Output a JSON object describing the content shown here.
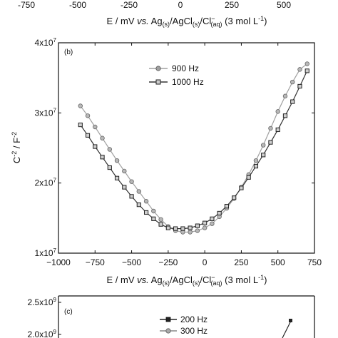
{
  "chart_data": [
    {
      "panel": "top",
      "type": "line",
      "x_tick_labels": [
        "-750",
        "-500",
        "-250",
        "0",
        "250",
        "500"
      ],
      "xlabel": {
        "prefix": "E / mV ",
        "italic": "vs.",
        "mid1": " Ag",
        "sub1": "(s)",
        "mid2": "/AgCl",
        "sub2": "(s)",
        "mid3": "/Cl",
        "sup3": "−",
        "sub3": "(aq)",
        "suffix": " (3 mol L",
        "sup_suffix": "-1",
        "end": ")"
      }
    },
    {
      "panel": "middle",
      "type": "line",
      "panel_label": "(b)",
      "xlim": [
        -1000,
        750
      ],
      "ylim": [
        10000000,
        40000000
      ],
      "x_ticks": [
        -1000,
        -750,
        -500,
        -250,
        0,
        250,
        500,
        750
      ],
      "x_tick_labels": [
        "−1000",
        "−750",
        "−500",
        "−250",
        "0",
        "250",
        "500",
        "750"
      ],
      "y_ticks": [
        10000000,
        20000000,
        30000000,
        40000000
      ],
      "y_tick_labels": [
        {
          "mant": "1x10",
          "exp": "7"
        },
        {
          "mant": "2x10",
          "exp": "7"
        },
        {
          "mant": "3x10",
          "exp": "7"
        },
        {
          "mant": "4x10",
          "exp": "7"
        }
      ],
      "ylabel": {
        "base": "C",
        "sup1": "-2",
        "mid": " / F",
        "sup2": "-2"
      },
      "xlabel": {
        "prefix": "E / mV ",
        "italic": "vs.",
        "mid1": " Ag",
        "sub1": "(s)",
        "mid2": "/AgCl",
        "sub2": "(s)",
        "mid3": "/Cl",
        "sup3": "−",
        "sub3": "(aq)",
        "suffix": " (3 mol L",
        "sup_suffix": "-1",
        "end": ")"
      },
      "legend_position": "top-center",
      "series": [
        {
          "name": "900 Hz",
          "marker": "circle",
          "color": "#a0a0a0",
          "x": [
            -850,
            -800,
            -750,
            -700,
            -650,
            -600,
            -550,
            -500,
            -450,
            -400,
            -350,
            -300,
            -250,
            -200,
            -150,
            -100,
            -50,
            0,
            50,
            100,
            150,
            200,
            250,
            300,
            350,
            400,
            450,
            500,
            550,
            600,
            650,
            700
          ],
          "y": [
            31000000,
            29600000,
            28000000,
            26400000,
            24800000,
            23200000,
            21700000,
            20200000,
            18800000,
            17400000,
            16000000,
            14800000,
            13800000,
            13200000,
            13000000,
            13000000,
            13200000,
            13600000,
            14200000,
            15200000,
            16400000,
            17800000,
            19400000,
            21200000,
            23200000,
            25400000,
            27800000,
            30200000,
            32400000,
            34400000,
            36200000,
            37000000
          ]
        },
        {
          "name": "1000 Hz",
          "marker": "square",
          "color": "#333333",
          "x": [
            -850,
            -800,
            -750,
            -700,
            -650,
            -600,
            -550,
            -500,
            -450,
            -400,
            -350,
            -300,
            -250,
            -200,
            -150,
            -100,
            -50,
            0,
            50,
            100,
            150,
            200,
            250,
            300,
            350,
            400,
            450,
            500,
            550,
            600,
            650,
            700
          ],
          "y": [
            28300000,
            26800000,
            25200000,
            23700000,
            22200000,
            20700000,
            19400000,
            18100000,
            16900000,
            15800000,
            14900000,
            14100000,
            13600000,
            13500000,
            13500000,
            13600000,
            13900000,
            14300000,
            14900000,
            15700000,
            16700000,
            17900000,
            19300000,
            20800000,
            22400000,
            24000000,
            25800000,
            27600000,
            29600000,
            31600000,
            33800000,
            36000000
          ]
        }
      ]
    },
    {
      "panel": "bottom",
      "type": "line",
      "panel_label": "(c)",
      "y_tick_labels": [
        {
          "mant": "2.5x10",
          "exp": "9"
        },
        {
          "mant": "2.0x10",
          "exp": "9"
        }
      ],
      "legend_position": "top-center",
      "series": [
        {
          "name": "200 Hz",
          "marker": "square",
          "color": "#222222"
        },
        {
          "name": "300 Hz",
          "marker": "circle",
          "color": "#888888"
        }
      ]
    }
  ]
}
